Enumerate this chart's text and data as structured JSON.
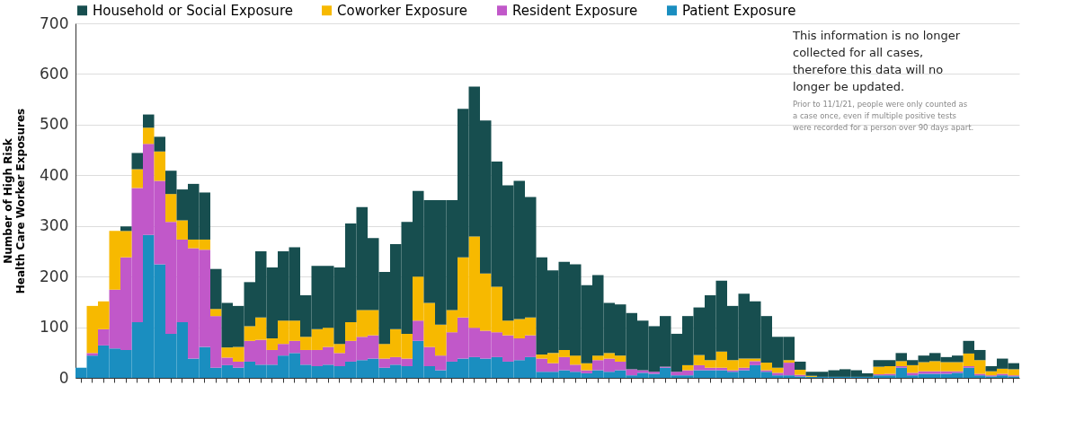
{
  "chart_data": {
    "type": "bar",
    "stacked": true,
    "ylabel": "Number of High Risk Health Care Worker Exposures",
    "categories": [
      null,
      null,
      null,
      null,
      null,
      null,
      null,
      null,
      null,
      null,
      null,
      null,
      null,
      null,
      null,
      null,
      null,
      null,
      null,
      null,
      null,
      null,
      null,
      null,
      null,
      null,
      null,
      null,
      null,
      null,
      null,
      null,
      null,
      null,
      null,
      null,
      null,
      null,
      null,
      null,
      null,
      null,
      null,
      null,
      null,
      null,
      null,
      null,
      null,
      null,
      null,
      null,
      null,
      null,
      null,
      null,
      null,
      null,
      null,
      null,
      null,
      null,
      null,
      null,
      null,
      null,
      null,
      null,
      null,
      null,
      null,
      null,
      null,
      null,
      null,
      null,
      null,
      null,
      null,
      null,
      null,
      null,
      null,
      null
    ],
    "series": [
      {
        "name": "Patient Exposure",
        "color": "#1a8ec0",
        "values": [
          20,
          44,
          64,
          58,
          55,
          110,
          282,
          224,
          87,
          110,
          38,
          61,
          20,
          25,
          20,
          32,
          26,
          26,
          44,
          49,
          26,
          23,
          26,
          23,
          32,
          35,
          38,
          20,
          26,
          23,
          73,
          23,
          15,
          32,
          38,
          41,
          38,
          41,
          32,
          35,
          41,
          12,
          12,
          15,
          12,
          9,
          15,
          12,
          15,
          5,
          10,
          8,
          20,
          5,
          5,
          15,
          15,
          15,
          12,
          15,
          25,
          12,
          5,
          5,
          3,
          2,
          2,
          2,
          2,
          2,
          2,
          5,
          5,
          20,
          5,
          8,
          8,
          8,
          10,
          20,
          5,
          3,
          5,
          3
        ]
      },
      {
        "name": "Resident Exposure",
        "color": "#c158c9",
        "values": [
          0,
          5,
          32,
          116,
          183,
          265,
          180,
          165,
          221,
          163,
          218,
          192,
          102,
          15,
          12,
          41,
          49,
          29,
          23,
          24,
          29,
          32,
          35,
          26,
          41,
          46,
          46,
          18,
          15,
          15,
          40,
          38,
          29,
          58,
          81,
          58,
          55,
          49,
          52,
          43,
          43,
          26,
          17,
          26,
          14,
          6,
          20,
          26,
          17,
          12,
          5,
          4,
          2,
          7,
          10,
          10,
          5,
          5,
          3,
          5,
          8,
          3,
          5,
          25,
          3,
          0,
          0,
          0,
          0,
          0,
          0,
          2,
          3,
          3,
          5,
          5,
          5,
          5,
          3,
          3,
          3,
          2,
          3,
          2
        ]
      },
      {
        "name": "Coworker Exposure",
        "color": "#f7b900",
        "values": [
          0,
          93,
          55,
          116,
          52,
          37,
          32,
          58,
          55,
          38,
          17,
          20,
          14,
          20,
          29,
          29,
          44,
          23,
          46,
          40,
          26,
          41,
          38,
          18,
          37,
          53,
          50,
          29,
          55,
          49,
          87,
          87,
          61,
          44,
          119,
          180,
          113,
          90,
          29,
          38,
          35,
          8,
          20,
          14,
          18,
          14,
          9,
          11,
          12,
          0,
          0,
          0,
          0,
          0,
          10,
          20,
          15,
          32,
          20,
          18,
          5,
          15,
          10,
          5,
          10,
          2,
          0,
          0,
          0,
          0,
          0,
          15,
          15,
          10,
          15,
          18,
          20,
          18,
          18,
          25,
          27,
          8,
          10,
          12
        ]
      },
      {
        "name": "Household or Social Exposure",
        "color": "#174e4f",
        "values": [
          0,
          0,
          0,
          0,
          9,
          32,
          26,
          29,
          46,
          61,
          110,
          93,
          79,
          88,
          81,
          87,
          131,
          140,
          137,
          145,
          82,
          125,
          122,
          151,
          195,
          203,
          142,
          142,
          168,
          221,
          169,
          203,
          246,
          217,
          293,
          296,
          302,
          247,
          267,
          273,
          238,
          192,
          163,
          174,
          180,
          154,
          159,
          99,
          101,
          111,
          98,
          90,
          100,
          75,
          97,
          94,
          128,
          140,
          107,
          128,
          113,
          92,
          61,
          46,
          16,
          8,
          10,
          13,
          15,
          13,
          7,
          13,
          12,
          16,
          10,
          13,
          16,
          10,
          13,
          25,
          20,
          10,
          20,
          12
        ]
      }
    ],
    "ylim": [
      0,
      700
    ],
    "yticks": [
      0,
      100,
      200,
      300,
      400,
      500,
      600,
      700
    ],
    "grid": "y",
    "legend": "top",
    "tick_labels": "y",
    "annotations": [
      "This information is no longer collected for all cases, therefore this data will no longer be updated.",
      "Prior to 11/1/21, people were only counted as a case once, even if multiple positive tests were recorded for a person over 90 days apart."
    ]
  }
}
